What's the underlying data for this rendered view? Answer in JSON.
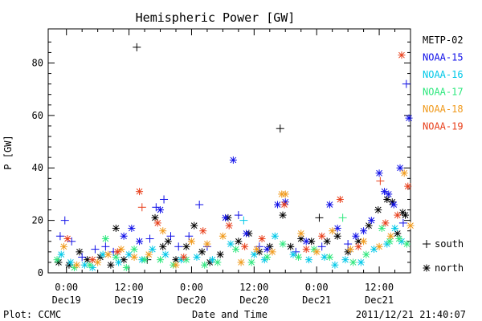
{
  "chart_data": {
    "type": "scatter",
    "title": "Hemispheric Power [GW]",
    "ylabel": "P [GW]",
    "xlabel": "Date and Time",
    "x_unit": "hours",
    "xlim": [
      -3.5,
      66
    ],
    "ylim": [
      0,
      93
    ],
    "yticks": [
      0,
      20,
      40,
      60,
      80
    ],
    "yticks_minor": [
      4,
      8,
      12,
      16,
      24,
      28,
      32,
      36,
      44,
      48,
      52,
      56,
      64,
      68,
      72,
      76,
      84,
      88
    ],
    "xticks": [
      {
        "x": 0,
        "time": "0:00",
        "date": "Dec19"
      },
      {
        "x": 12,
        "time": "12:00",
        "date": "Dec19"
      },
      {
        "x": 24,
        "time": "0:00",
        "date": "Dec20"
      },
      {
        "x": 36,
        "time": "12:00",
        "date": "Dec20"
      },
      {
        "x": 48,
        "time": "0:00",
        "date": "Dec21"
      },
      {
        "x": 60,
        "time": "12:00",
        "date": "Dec21"
      }
    ],
    "xticks_minor": [
      3,
      6,
      9,
      15,
      18,
      21,
      27,
      30,
      33,
      39,
      42,
      45,
      51,
      54,
      57,
      63
    ],
    "marker_legend": [
      {
        "symbol": "+",
        "label": "south"
      },
      {
        "symbol": "*",
        "label": "north"
      }
    ],
    "series": [
      {
        "name": "METP-02",
        "color": "#000000",
        "points": [
          {
            "x": -1.5,
            "y": 4,
            "m": "*"
          },
          {
            "x": 0.5,
            "y": 3,
            "m": "*"
          },
          {
            "x": 2.5,
            "y": 8,
            "m": "*"
          },
          {
            "x": 4,
            "y": 5,
            "m": "*"
          },
          {
            "x": 6.5,
            "y": 6,
            "m": "*"
          },
          {
            "x": 8.5,
            "y": 3,
            "m": "*"
          },
          {
            "x": 9.5,
            "y": 17,
            "m": "*"
          },
          {
            "x": 11,
            "y": 5,
            "m": "*"
          },
          {
            "x": 13.5,
            "y": 86,
            "m": "+"
          },
          {
            "x": 15.5,
            "y": 5,
            "m": "+"
          },
          {
            "x": 17,
            "y": 21,
            "m": "*"
          },
          {
            "x": 18.5,
            "y": 10,
            "m": "*"
          },
          {
            "x": 19.5,
            "y": 12,
            "m": "*"
          },
          {
            "x": 21,
            "y": 5,
            "m": "*"
          },
          {
            "x": 23,
            "y": 10,
            "m": "*"
          },
          {
            "x": 24.5,
            "y": 18,
            "m": "*"
          },
          {
            "x": 26,
            "y": 8,
            "m": "*"
          },
          {
            "x": 27.5,
            "y": 4,
            "m": "*"
          },
          {
            "x": 29.5,
            "y": 7,
            "m": "*"
          },
          {
            "x": 31,
            "y": 21,
            "m": "*"
          },
          {
            "x": 33,
            "y": 12,
            "m": "*"
          },
          {
            "x": 35,
            "y": 15,
            "m": "*"
          },
          {
            "x": 37,
            "y": 8,
            "m": "*"
          },
          {
            "x": 39,
            "y": 10,
            "m": "*"
          },
          {
            "x": 41,
            "y": 55,
            "m": "+"
          },
          {
            "x": 41.5,
            "y": 22,
            "m": "*"
          },
          {
            "x": 43,
            "y": 10,
            "m": "*"
          },
          {
            "x": 45,
            "y": 13,
            "m": "*"
          },
          {
            "x": 47,
            "y": 12,
            "m": "*"
          },
          {
            "x": 48.5,
            "y": 21,
            "m": "+"
          },
          {
            "x": 50,
            "y": 12,
            "m": "*"
          },
          {
            "x": 52,
            "y": 14,
            "m": "*"
          },
          {
            "x": 54,
            "y": 8,
            "m": "*"
          },
          {
            "x": 56,
            "y": 12,
            "m": "*"
          },
          {
            "x": 58,
            "y": 18,
            "m": "*"
          },
          {
            "x": 59.8,
            "y": 24,
            "m": "*"
          },
          {
            "x": 61.5,
            "y": 28,
            "m": "*"
          },
          {
            "x": 62.5,
            "y": 27,
            "m": "*"
          },
          {
            "x": 63.5,
            "y": 15,
            "m": "*"
          },
          {
            "x": 64.5,
            "y": 23,
            "m": "*"
          },
          {
            "x": 65,
            "y": 22,
            "m": "*"
          }
        ]
      },
      {
        "name": "NOAA-15",
        "color": "#1010e8",
        "points": [
          {
            "x": -1.2,
            "y": 14,
            "m": "+"
          },
          {
            "x": -0.3,
            "y": 20,
            "m": "+"
          },
          {
            "x": 1,
            "y": 12,
            "m": "+"
          },
          {
            "x": 3,
            "y": 6,
            "m": "+"
          },
          {
            "x": 5.5,
            "y": 9,
            "m": "+"
          },
          {
            "x": 7.5,
            "y": 10,
            "m": "+"
          },
          {
            "x": 9,
            "y": 8,
            "m": "+"
          },
          {
            "x": 11,
            "y": 14,
            "m": "*"
          },
          {
            "x": 12.5,
            "y": 17,
            "m": "*"
          },
          {
            "x": 14,
            "y": 12,
            "m": "*"
          },
          {
            "x": 16,
            "y": 13,
            "m": "+"
          },
          {
            "x": 17.2,
            "y": 25,
            "m": "+"
          },
          {
            "x": 18,
            "y": 24,
            "m": "*"
          },
          {
            "x": 18.7,
            "y": 28,
            "m": "+"
          },
          {
            "x": 20,
            "y": 14,
            "m": "+"
          },
          {
            "x": 21.5,
            "y": 10,
            "m": "+"
          },
          {
            "x": 23.5,
            "y": 14,
            "m": "+"
          },
          {
            "x": 25.5,
            "y": 26,
            "m": "+"
          },
          {
            "x": 27,
            "y": 10,
            "m": "+"
          },
          {
            "x": 30.5,
            "y": 21,
            "m": "*"
          },
          {
            "x": 32,
            "y": 43,
            "m": "*"
          },
          {
            "x": 33,
            "y": 22,
            "m": "+"
          },
          {
            "x": 34.5,
            "y": 15,
            "m": "*"
          },
          {
            "x": 37,
            "y": 10,
            "m": "+"
          },
          {
            "x": 38.5,
            "y": 9,
            "m": "*"
          },
          {
            "x": 40.5,
            "y": 26,
            "m": "*"
          },
          {
            "x": 42,
            "y": 27,
            "m": "*"
          },
          {
            "x": 44,
            "y": 8,
            "m": "+"
          },
          {
            "x": 46,
            "y": 12,
            "m": "*"
          },
          {
            "x": 49,
            "y": 10,
            "m": "+"
          },
          {
            "x": 50.5,
            "y": 26,
            "m": "*"
          },
          {
            "x": 52,
            "y": 17,
            "m": "*"
          },
          {
            "x": 54,
            "y": 11,
            "m": "+"
          },
          {
            "x": 55.5,
            "y": 14,
            "m": "*"
          },
          {
            "x": 57,
            "y": 16,
            "m": "*"
          },
          {
            "x": 58.5,
            "y": 20,
            "m": "*"
          },
          {
            "x": 60,
            "y": 38,
            "m": "*"
          },
          {
            "x": 61,
            "y": 31,
            "m": "*"
          },
          {
            "x": 61.8,
            "y": 30,
            "m": "*"
          },
          {
            "x": 62.8,
            "y": 26,
            "m": "*"
          },
          {
            "x": 64,
            "y": 40,
            "m": "*"
          },
          {
            "x": 64.6,
            "y": 19,
            "m": "+"
          },
          {
            "x": 65.2,
            "y": 72,
            "m": "+"
          },
          {
            "x": 65.7,
            "y": 59,
            "m": "*"
          }
        ]
      },
      {
        "name": "NOAA-16",
        "color": "#00c8e8",
        "points": [
          {
            "x": -1,
            "y": 7,
            "m": "*"
          },
          {
            "x": 0.8,
            "y": 4,
            "m": "*"
          },
          {
            "x": 3.5,
            "y": 3,
            "m": "*"
          },
          {
            "x": 5,
            "y": 2,
            "m": "*"
          },
          {
            "x": 7,
            "y": 7,
            "m": "*"
          },
          {
            "x": 10,
            "y": 4,
            "m": "*"
          },
          {
            "x": 12,
            "y": 7,
            "m": "*"
          },
          {
            "x": 14.5,
            "y": 5,
            "m": "*"
          },
          {
            "x": 16.5,
            "y": 9,
            "m": "*"
          },
          {
            "x": 19,
            "y": 7,
            "m": "*"
          },
          {
            "x": 22,
            "y": 5,
            "m": "*"
          },
          {
            "x": 25,
            "y": 6,
            "m": "*"
          },
          {
            "x": 28,
            "y": 5,
            "m": "*"
          },
          {
            "x": 31.5,
            "y": 11,
            "m": "*"
          },
          {
            "x": 34,
            "y": 20,
            "m": "+"
          },
          {
            "x": 36,
            "y": 7,
            "m": "*"
          },
          {
            "x": 38,
            "y": 5,
            "m": "*"
          },
          {
            "x": 40,
            "y": 14,
            "m": "*"
          },
          {
            "x": 43.5,
            "y": 7,
            "m": "*"
          },
          {
            "x": 46.5,
            "y": 5,
            "m": "*"
          },
          {
            "x": 49.5,
            "y": 6,
            "m": "*"
          },
          {
            "x": 51.5,
            "y": 3,
            "m": "*"
          },
          {
            "x": 53.5,
            "y": 5,
            "m": "*"
          },
          {
            "x": 56.5,
            "y": 4,
            "m": "*"
          },
          {
            "x": 59,
            "y": 9,
            "m": "*"
          },
          {
            "x": 61.5,
            "y": 11,
            "m": "*"
          },
          {
            "x": 63,
            "y": 17,
            "m": "*"
          },
          {
            "x": 64.3,
            "y": 12,
            "m": "*"
          }
        ]
      },
      {
        "name": "NOAA-17",
        "color": "#2ee87e",
        "points": [
          {
            "x": -1.8,
            "y": 5,
            "m": "*"
          },
          {
            "x": 1.5,
            "y": 2,
            "m": "*"
          },
          {
            "x": 4.5,
            "y": 3,
            "m": "*"
          },
          {
            "x": 7.5,
            "y": 13,
            "m": "*"
          },
          {
            "x": 9.5,
            "y": 6,
            "m": "*"
          },
          {
            "x": 11.5,
            "y": 2,
            "m": "*"
          },
          {
            "x": 13,
            "y": 9,
            "m": "*"
          },
          {
            "x": 15,
            "y": 5,
            "m": "*"
          },
          {
            "x": 18,
            "y": 5,
            "m": "*"
          },
          {
            "x": 20.5,
            "y": 3,
            "m": "*"
          },
          {
            "x": 23,
            "y": 5,
            "m": "*"
          },
          {
            "x": 26.5,
            "y": 3,
            "m": "*"
          },
          {
            "x": 29,
            "y": 4,
            "m": "*"
          },
          {
            "x": 32.5,
            "y": 9,
            "m": "*"
          },
          {
            "x": 35.5,
            "y": 4,
            "m": "*"
          },
          {
            "x": 38.5,
            "y": 6,
            "m": "*"
          },
          {
            "x": 41.5,
            "y": 11,
            "m": "*"
          },
          {
            "x": 44.5,
            "y": 6,
            "m": "*"
          },
          {
            "x": 47.5,
            "y": 9,
            "m": "*"
          },
          {
            "x": 50.5,
            "y": 6,
            "m": "*"
          },
          {
            "x": 53,
            "y": 21,
            "m": "+"
          },
          {
            "x": 55,
            "y": 4,
            "m": "*"
          },
          {
            "x": 57.5,
            "y": 7,
            "m": "*"
          },
          {
            "x": 60.5,
            "y": 17,
            "m": "*"
          },
          {
            "x": 62,
            "y": 12,
            "m": "*"
          },
          {
            "x": 63.8,
            "y": 13,
            "m": "*"
          },
          {
            "x": 65.3,
            "y": 11,
            "m": "*"
          }
        ]
      },
      {
        "name": "NOAA-18",
        "color": "#f09a1c",
        "points": [
          {
            "x": -0.5,
            "y": 10,
            "m": "*"
          },
          {
            "x": 2,
            "y": 3,
            "m": "*"
          },
          {
            "x": 6,
            "y": 4,
            "m": "*"
          },
          {
            "x": 8,
            "y": 7,
            "m": "*"
          },
          {
            "x": 10.5,
            "y": 9,
            "m": "*"
          },
          {
            "x": 13,
            "y": 6,
            "m": "*"
          },
          {
            "x": 15.8,
            "y": 7,
            "m": "*"
          },
          {
            "x": 18.5,
            "y": 16,
            "m": "*"
          },
          {
            "x": 21,
            "y": 3,
            "m": "*"
          },
          {
            "x": 24,
            "y": 12,
            "m": "*"
          },
          {
            "x": 27,
            "y": 11,
            "m": "*"
          },
          {
            "x": 30,
            "y": 14,
            "m": "*"
          },
          {
            "x": 33.5,
            "y": 4,
            "m": "*"
          },
          {
            "x": 36.5,
            "y": 9,
            "m": "*"
          },
          {
            "x": 39.5,
            "y": 8,
            "m": "*"
          },
          {
            "x": 41.3,
            "y": 30,
            "m": "*"
          },
          {
            "x": 42,
            "y": 30,
            "m": "*"
          },
          {
            "x": 45,
            "y": 15,
            "m": "*"
          },
          {
            "x": 48,
            "y": 8,
            "m": "*"
          },
          {
            "x": 51,
            "y": 16,
            "m": "*"
          },
          {
            "x": 54.5,
            "y": 9,
            "m": "*"
          },
          {
            "x": 57,
            "y": 12,
            "m": "*"
          },
          {
            "x": 60,
            "y": 10,
            "m": "*"
          },
          {
            "x": 62.2,
            "y": 14,
            "m": "*"
          },
          {
            "x": 64.8,
            "y": 38,
            "m": "*"
          },
          {
            "x": 66,
            "y": 18,
            "m": "*"
          }
        ]
      },
      {
        "name": "NOAA-19",
        "color": "#e8401c",
        "points": [
          {
            "x": 0.2,
            "y": 13,
            "m": "*"
          },
          {
            "x": 5,
            "y": 5,
            "m": "*"
          },
          {
            "x": 9.8,
            "y": 8,
            "m": "*"
          },
          {
            "x": 14,
            "y": 31,
            "m": "*"
          },
          {
            "x": 14.5,
            "y": 25,
            "m": "+"
          },
          {
            "x": 17.5,
            "y": 19,
            "m": "*"
          },
          {
            "x": 22.5,
            "y": 6,
            "m": "*"
          },
          {
            "x": 26.2,
            "y": 16,
            "m": "*"
          },
          {
            "x": 31.2,
            "y": 18,
            "m": "*"
          },
          {
            "x": 34.2,
            "y": 10,
            "m": "*"
          },
          {
            "x": 37.5,
            "y": 13,
            "m": "*"
          },
          {
            "x": 41.8,
            "y": 26,
            "m": "*"
          },
          {
            "x": 46,
            "y": 9,
            "m": "*"
          },
          {
            "x": 49,
            "y": 14,
            "m": "*"
          },
          {
            "x": 52.5,
            "y": 28,
            "m": "*"
          },
          {
            "x": 56,
            "y": 10,
            "m": "*"
          },
          {
            "x": 60.2,
            "y": 35,
            "m": "+"
          },
          {
            "x": 61.2,
            "y": 19,
            "m": "*"
          },
          {
            "x": 63.5,
            "y": 22,
            "m": "*"
          },
          {
            "x": 64.3,
            "y": 83,
            "m": "*"
          },
          {
            "x": 65.5,
            "y": 33,
            "m": "*"
          }
        ]
      }
    ]
  },
  "footer": {
    "source": "Plot: CCMC",
    "timestamp": "2011/12/21 21:40:07"
  }
}
